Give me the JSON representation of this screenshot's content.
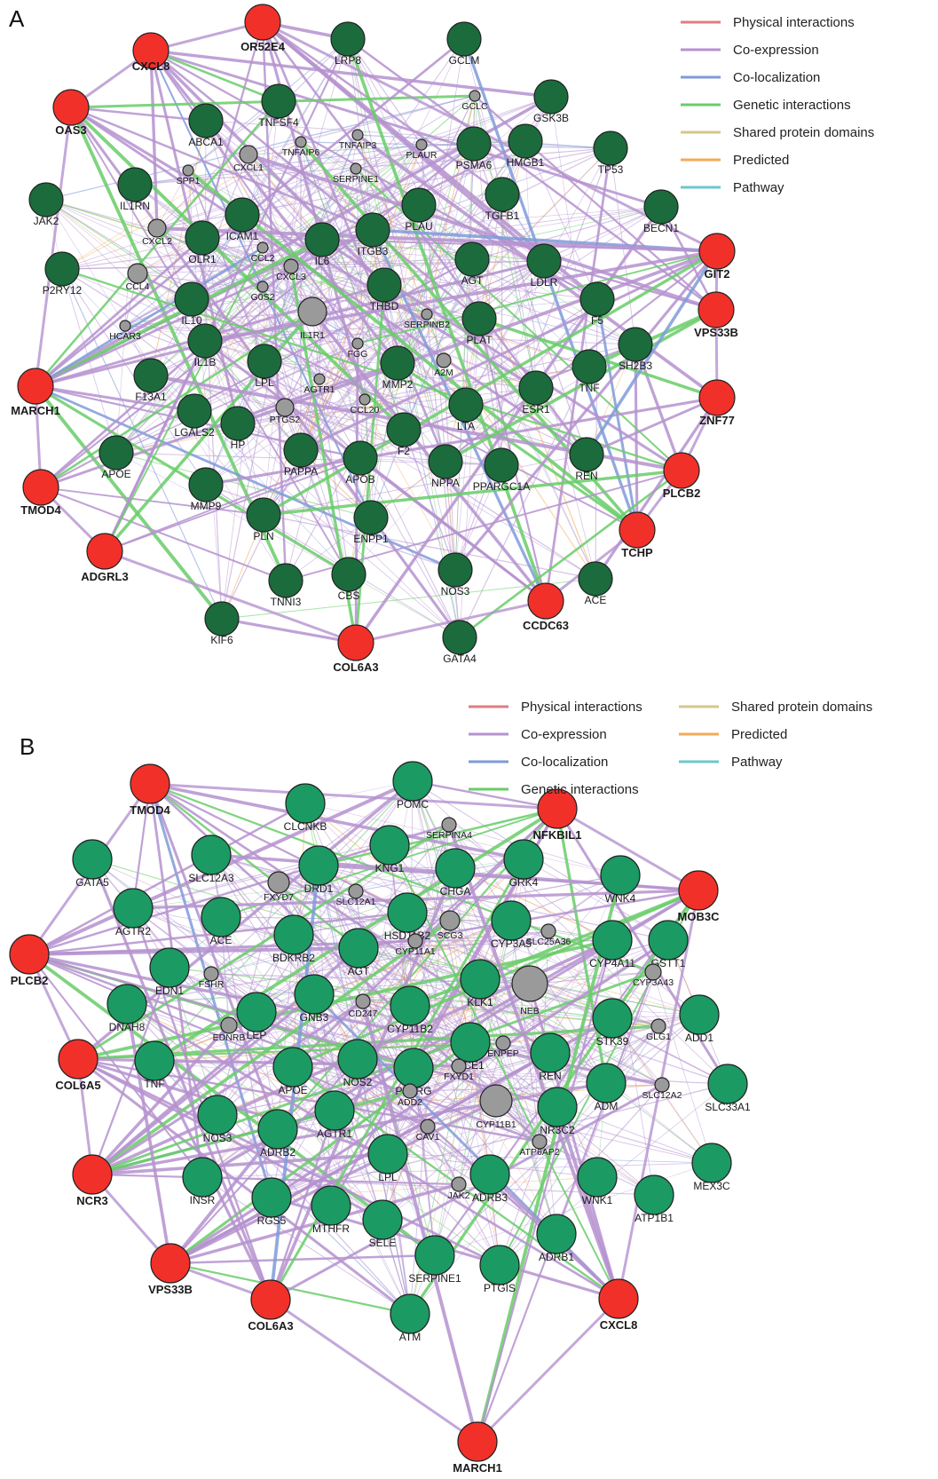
{
  "colors": {
    "query_node": "#f2302a",
    "panel_a_node": "#1b6b3c",
    "panel_b_node": "#1b9a63",
    "predicted_node": "#9a9a9a",
    "edge_base": "#c9a8d9"
  },
  "edge_types": [
    {
      "key": "physical",
      "label": "Physical interactions",
      "color": "#e07d82"
    },
    {
      "key": "coexp",
      "label": "Co-expression",
      "color": "#b592cf"
    },
    {
      "key": "coloc",
      "label": "Co-localization",
      "color": "#7f9bd8"
    },
    {
      "key": "genetic",
      "label": "Genetic interactions",
      "color": "#69cd69"
    },
    {
      "key": "domains",
      "label": "Shared protein domains",
      "color": "#d4c789"
    },
    {
      "key": "predicted",
      "label": "Predicted",
      "color": "#f3aa5b"
    },
    {
      "key": "pathway",
      "label": "Pathway",
      "color": "#6ec7cd"
    }
  ],
  "panels": [
    {
      "letter": "A",
      "legend": [
        "physical",
        "coexp",
        "coloc",
        "genetic",
        "domains",
        "predicted",
        "pathway"
      ],
      "nodes": [
        {
          "id": "CXCL8",
          "type": "query"
        },
        {
          "id": "OR52E4",
          "type": "query"
        },
        {
          "id": "OAS3",
          "type": "query"
        },
        {
          "id": "MARCH1",
          "type": "query"
        },
        {
          "id": "TMOD4",
          "type": "query"
        },
        {
          "id": "ADGRL3",
          "type": "query"
        },
        {
          "id": "COL6A3",
          "type": "query"
        },
        {
          "id": "CCDC63",
          "type": "query"
        },
        {
          "id": "TCHP",
          "type": "query"
        },
        {
          "id": "PLCB2",
          "type": "query"
        },
        {
          "id": "ZNF77",
          "type": "query"
        },
        {
          "id": "VPS33B",
          "type": "query"
        },
        {
          "id": "GIT2",
          "type": "query"
        },
        {
          "id": "LRP8",
          "type": "gene"
        },
        {
          "id": "GCLM",
          "type": "gene"
        },
        {
          "id": "GSK3B",
          "type": "gene"
        },
        {
          "id": "HMGB1",
          "type": "gene"
        },
        {
          "id": "PSMA6",
          "type": "gene"
        },
        {
          "id": "TP53",
          "type": "gene"
        },
        {
          "id": "BECN1",
          "type": "gene"
        },
        {
          "id": "TNFSF4",
          "type": "gene"
        },
        {
          "id": "ABCA1",
          "type": "gene"
        },
        {
          "id": "IL1RN",
          "type": "gene"
        },
        {
          "id": "JAK2",
          "type": "gene"
        },
        {
          "id": "ICAM1",
          "type": "gene"
        },
        {
          "id": "OLR1",
          "type": "gene"
        },
        {
          "id": "IL6",
          "type": "gene"
        },
        {
          "id": "ITGB3",
          "type": "gene"
        },
        {
          "id": "PLAU",
          "type": "gene"
        },
        {
          "id": "TGFB1",
          "type": "gene"
        },
        {
          "id": "AGT",
          "type": "gene"
        },
        {
          "id": "LDLR",
          "type": "gene"
        },
        {
          "id": "P2RY12",
          "type": "gene"
        },
        {
          "id": "IL10",
          "type": "gene"
        },
        {
          "id": "THBD",
          "type": "gene"
        },
        {
          "id": "PLAT",
          "type": "gene"
        },
        {
          "id": "F5",
          "type": "gene"
        },
        {
          "id": "SH2B3",
          "type": "gene"
        },
        {
          "id": "IL1B",
          "type": "gene"
        },
        {
          "id": "LPL",
          "type": "gene"
        },
        {
          "id": "MMP2",
          "type": "gene"
        },
        {
          "id": "TNF",
          "type": "gene"
        },
        {
          "id": "F13A1",
          "type": "gene"
        },
        {
          "id": "ESR1",
          "type": "gene"
        },
        {
          "id": "LGALS2",
          "type": "gene"
        },
        {
          "id": "HP",
          "type": "gene"
        },
        {
          "id": "LTA",
          "type": "gene"
        },
        {
          "id": "F2",
          "type": "gene"
        },
        {
          "id": "APOE",
          "type": "gene"
        },
        {
          "id": "PAPPA",
          "type": "gene"
        },
        {
          "id": "APOB",
          "type": "gene"
        },
        {
          "id": "NPPA",
          "type": "gene"
        },
        {
          "id": "PPARGC1A",
          "type": "gene"
        },
        {
          "id": "REN",
          "type": "gene"
        },
        {
          "id": "MMP9",
          "type": "gene"
        },
        {
          "id": "ENPP1",
          "type": "gene"
        },
        {
          "id": "PLN",
          "type": "gene"
        },
        {
          "id": "NOS3",
          "type": "gene"
        },
        {
          "id": "TNNI3",
          "type": "gene"
        },
        {
          "id": "CBS",
          "type": "gene"
        },
        {
          "id": "ACE",
          "type": "gene"
        },
        {
          "id": "KIF6",
          "type": "gene"
        },
        {
          "id": "GATA4",
          "type": "gene"
        },
        {
          "id": "GCLC",
          "type": "predicted"
        },
        {
          "id": "TNFAIP3",
          "type": "predicted"
        },
        {
          "id": "TNFAIP6",
          "type": "predicted"
        },
        {
          "id": "CXCL1",
          "type": "predicted"
        },
        {
          "id": "PLAUR",
          "type": "predicted"
        },
        {
          "id": "SPP1",
          "type": "predicted"
        },
        {
          "id": "SERPINE1",
          "type": "predicted"
        },
        {
          "id": "CXCL2",
          "type": "predicted"
        },
        {
          "id": "CCL2",
          "type": "predicted"
        },
        {
          "id": "CCL4",
          "type": "predicted"
        },
        {
          "id": "CXCL3",
          "type": "predicted"
        },
        {
          "id": "G0S2",
          "type": "predicted"
        },
        {
          "id": "IL1R1",
          "type": "predicted"
        },
        {
          "id": "SERPINB2",
          "type": "predicted"
        },
        {
          "id": "HCAR3",
          "type": "predicted"
        },
        {
          "id": "FGG",
          "type": "predicted"
        },
        {
          "id": "A2M",
          "type": "predicted"
        },
        {
          "id": "AGTR1",
          "type": "predicted"
        },
        {
          "id": "CCL20",
          "type": "predicted"
        },
        {
          "id": "PTGS2",
          "type": "predicted"
        }
      ]
    },
    {
      "letter": "B",
      "legend": [
        "physical",
        "coexp",
        "coloc",
        "genetic",
        "domains",
        "predicted",
        "pathway"
      ],
      "nodes": [
        {
          "id": "TMOD4",
          "type": "query"
        },
        {
          "id": "NFKBIL1",
          "type": "query"
        },
        {
          "id": "MOB3C",
          "type": "query"
        },
        {
          "id": "PLCB2",
          "type": "query"
        },
        {
          "id": "COL6A5",
          "type": "query"
        },
        {
          "id": "NCR3",
          "type": "query"
        },
        {
          "id": "VPS33B",
          "type": "query"
        },
        {
          "id": "COL6A3",
          "type": "query"
        },
        {
          "id": "MARCH1",
          "type": "query"
        },
        {
          "id": "CXCL8",
          "type": "query"
        },
        {
          "id": "POMC",
          "type": "gene"
        },
        {
          "id": "CLCNKB",
          "type": "gene"
        },
        {
          "id": "GATA5",
          "type": "gene"
        },
        {
          "id": "SLC12A3",
          "type": "gene"
        },
        {
          "id": "DRD1",
          "type": "gene"
        },
        {
          "id": "KNG1",
          "type": "gene"
        },
        {
          "id": "CHGA",
          "type": "gene"
        },
        {
          "id": "GRK4",
          "type": "gene"
        },
        {
          "id": "WNK4",
          "type": "gene"
        },
        {
          "id": "AGTR2",
          "type": "gene"
        },
        {
          "id": "ACE",
          "type": "gene"
        },
        {
          "id": "HSD11B2",
          "type": "gene"
        },
        {
          "id": "CYP3A5",
          "type": "gene"
        },
        {
          "id": "BDKRB2",
          "type": "gene"
        },
        {
          "id": "AGT",
          "type": "gene"
        },
        {
          "id": "CYP4A11",
          "type": "gene"
        },
        {
          "id": "GSTT1",
          "type": "gene"
        },
        {
          "id": "EDN1",
          "type": "gene"
        },
        {
          "id": "KLK1",
          "type": "gene"
        },
        {
          "id": "DNAH8",
          "type": "gene"
        },
        {
          "id": "GNB3",
          "type": "gene"
        },
        {
          "id": "CYP11B2",
          "type": "gene"
        },
        {
          "id": "ADD1",
          "type": "gene"
        },
        {
          "id": "LEP",
          "type": "gene"
        },
        {
          "id": "STK39",
          "type": "gene"
        },
        {
          "id": "TNF",
          "type": "gene"
        },
        {
          "id": "ECE1",
          "type": "gene"
        },
        {
          "id": "REN",
          "type": "gene"
        },
        {
          "id": "APOE",
          "type": "gene"
        },
        {
          "id": "NOS2",
          "type": "gene"
        },
        {
          "id": "PPARG",
          "type": "gene"
        },
        {
          "id": "ADM",
          "type": "gene"
        },
        {
          "id": "SLC33A1",
          "type": "gene"
        },
        {
          "id": "NOS3",
          "type": "gene"
        },
        {
          "id": "AGTR1",
          "type": "gene"
        },
        {
          "id": "NR3C2",
          "type": "gene"
        },
        {
          "id": "ADRB2",
          "type": "gene"
        },
        {
          "id": "LPL",
          "type": "gene"
        },
        {
          "id": "MEX3C",
          "type": "gene"
        },
        {
          "id": "ADRB3",
          "type": "gene"
        },
        {
          "id": "WNK1",
          "type": "gene"
        },
        {
          "id": "ATP1B1",
          "type": "gene"
        },
        {
          "id": "INSR",
          "type": "gene"
        },
        {
          "id": "RGS5",
          "type": "gene"
        },
        {
          "id": "MTHFR",
          "type": "gene"
        },
        {
          "id": "SELE",
          "type": "gene"
        },
        {
          "id": "ADRB1",
          "type": "gene"
        },
        {
          "id": "SERPINE1",
          "type": "gene"
        },
        {
          "id": "PTGIS",
          "type": "gene"
        },
        {
          "id": "ATM",
          "type": "gene"
        },
        {
          "id": "SERPINA4",
          "type": "predicted"
        },
        {
          "id": "FXYD7",
          "type": "predicted"
        },
        {
          "id": "SLC12A1",
          "type": "predicted"
        },
        {
          "id": "SCG3",
          "type": "predicted"
        },
        {
          "id": "SLC25A36",
          "type": "predicted"
        },
        {
          "id": "CYP11A1",
          "type": "predicted"
        },
        {
          "id": "NEB",
          "type": "predicted"
        },
        {
          "id": "CYP3A43",
          "type": "predicted"
        },
        {
          "id": "FSHR",
          "type": "predicted"
        },
        {
          "id": "CD247",
          "type": "predicted"
        },
        {
          "id": "EDNRB",
          "type": "predicted"
        },
        {
          "id": "ENPEP",
          "type": "predicted"
        },
        {
          "id": "GLG1",
          "type": "predicted"
        },
        {
          "id": "FXYD1",
          "type": "predicted"
        },
        {
          "id": "ADD2",
          "type": "predicted"
        },
        {
          "id": "CYP11B1",
          "type": "predicted"
        },
        {
          "id": "SLC12A2",
          "type": "predicted"
        },
        {
          "id": "CAV1",
          "type": "predicted"
        },
        {
          "id": "ATP6AP2",
          "type": "predicted"
        },
        {
          "id": "JAK2",
          "type": "predicted"
        }
      ]
    }
  ]
}
